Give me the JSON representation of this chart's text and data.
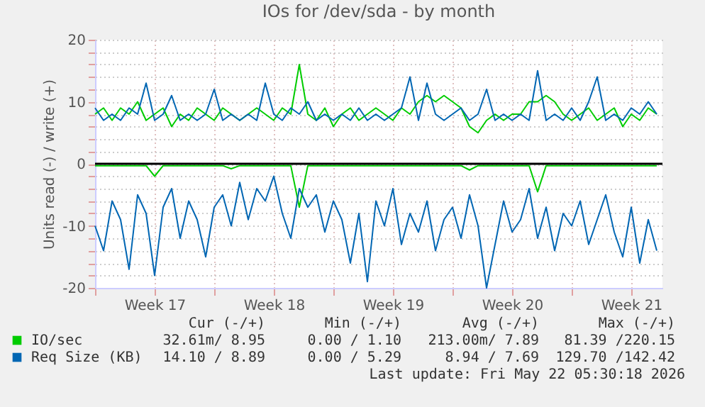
{
  "chart_data": {
    "type": "line",
    "title": "IOs for /dev/sda - by month",
    "ylabel": "Units read (-) / write (+)",
    "x": [
      "2026-04-20T00:00",
      "2026-04-20T12:00",
      "2026-04-21T00:00",
      "2026-04-21T12:00",
      "2026-04-22T00:00",
      "2026-04-22T12:00",
      "2026-04-23T00:00",
      "2026-04-23T12:00",
      "2026-04-24T00:00",
      "2026-04-24T12:00",
      "2026-04-25T00:00",
      "2026-04-25T12:00",
      "2026-04-26T00:00",
      "2026-04-26T12:00",
      "2026-04-27T00:00",
      "2026-04-27T12:00",
      "2026-04-28T00:00",
      "2026-04-28T12:00",
      "2026-04-29T00:00",
      "2026-04-29T12:00",
      "2026-04-30T00:00",
      "2026-04-30T12:00",
      "2026-05-01T00:00",
      "2026-05-01T12:00",
      "2026-05-02T00:00",
      "2026-05-02T12:00",
      "2026-05-03T00:00",
      "2026-05-03T12:00",
      "2026-05-04T00:00",
      "2026-05-04T12:00",
      "2026-05-05T00:00",
      "2026-05-05T12:00",
      "2026-05-06T00:00",
      "2026-05-06T12:00",
      "2026-05-07T00:00",
      "2026-05-07T12:00",
      "2026-05-08T00:00",
      "2026-05-08T12:00",
      "2026-05-09T00:00",
      "2026-05-09T12:00",
      "2026-05-10T00:00",
      "2026-05-10T12:00",
      "2026-05-11T00:00",
      "2026-05-11T12:00",
      "2026-05-12T00:00",
      "2026-05-12T12:00",
      "2026-05-13T00:00",
      "2026-05-13T12:00",
      "2026-05-14T00:00",
      "2026-05-14T12:00",
      "2026-05-15T00:00",
      "2026-05-15T12:00",
      "2026-05-16T00:00",
      "2026-05-16T12:00",
      "2026-05-17T00:00",
      "2026-05-17T12:00",
      "2026-05-18T00:00",
      "2026-05-18T12:00",
      "2026-05-19T00:00",
      "2026-05-19T12:00",
      "2026-05-20T00:00",
      "2026-05-20T12:00",
      "2026-05-21T00:00",
      "2026-05-21T12:00",
      "2026-05-22T00:00",
      "2026-05-22T12:00",
      "2026-05-23T00:00"
    ],
    "xlim": [
      "2026-04-20T00:00",
      "2026-05-23T08:00"
    ],
    "xticks": [
      {
        "value": "2026-04-20T00:00",
        "label": null
      },
      {
        "value": "2026-04-23T12:00",
        "label": "Week 17"
      },
      {
        "value": "2026-04-27T00:00",
        "label": null
      },
      {
        "value": "2026-04-30T12:00",
        "label": "Week 18"
      },
      {
        "value": "2026-05-04T00:00",
        "label": null
      },
      {
        "value": "2026-05-07T12:00",
        "label": "Week 19"
      },
      {
        "value": "2026-05-11T00:00",
        "label": null
      },
      {
        "value": "2026-05-14T12:00",
        "label": "Week 20"
      },
      {
        "value": "2026-05-18T00:00",
        "label": null
      },
      {
        "value": "2026-05-21T12:00",
        "label": "Week 21"
      }
    ],
    "ylim": [
      -20,
      20
    ],
    "yticks": [
      -20,
      {
        "value": -18,
        "label": null
      },
      {
        "value": -16,
        "label": null
      },
      {
        "value": -14,
        "label": null
      },
      {
        "value": -12,
        "label": null
      },
      -10,
      {
        "value": -8,
        "label": null
      },
      {
        "value": -6,
        "label": null
      },
      {
        "value": -4,
        "label": null
      },
      {
        "value": -2,
        "label": null
      },
      0,
      {
        "value": 2,
        "label": null
      },
      {
        "value": 4,
        "label": null
      },
      {
        "value": 6,
        "label": null
      },
      {
        "value": 8,
        "label": null
      },
      10,
      {
        "value": 12,
        "label": null
      },
      {
        "value": 14,
        "label": null
      },
      {
        "value": 16,
        "label": null
      },
      {
        "value": 18,
        "label": null
      },
      20
    ],
    "grid": true,
    "legend": "bottom",
    "line_style": "solid",
    "marker": "none",
    "ref_lines": [
      {
        "axis": "y",
        "value": 0,
        "color": "#000000"
      }
    ],
    "series": [
      {
        "color": "#00cc00",
        "values": [
          -0.3,
          -0.3,
          -0.3,
          -0.3,
          -0.3,
          -0.3,
          -0.3,
          -2,
          -0.3,
          -0.3,
          -0.3,
          -0.3,
          -0.3,
          -0.3,
          -0.3,
          -0.3,
          -0.8,
          -0.3,
          -0.3,
          -0.3,
          -0.3,
          -0.3,
          -0.3,
          -0.3,
          -7,
          -0.3,
          -0.3,
          -0.3,
          -0.3,
          -0.3,
          -0.3,
          -0.3,
          -0.3,
          -0.3,
          -0.3,
          -0.3,
          -0.3,
          -0.3,
          -0.3,
          -0.3,
          -0.3,
          -0.3,
          -0.3,
          -0.3,
          -1,
          -0.3,
          -0.3,
          -0.3,
          -0.3,
          -0.3,
          -0.3,
          -0.3,
          -4.5,
          -0.3,
          -0.3,
          -0.3,
          -0.3,
          -0.3,
          -0.3,
          -0.3,
          -0.3,
          -0.3,
          -0.3,
          -0.3,
          -0.3,
          -0.3,
          -0.3
        ]
      },
      {
        "name": "IO/sec",
        "color": "#00cc00",
        "values": [
          8,
          9,
          7,
          9,
          8,
          10,
          7,
          8,
          9,
          6,
          8,
          7,
          9,
          8,
          7,
          9,
          8,
          7,
          8,
          9,
          8,
          7,
          9,
          8,
          16,
          8,
          7,
          9,
          6,
          8,
          9,
          7,
          8,
          9,
          8,
          7,
          9,
          8,
          10,
          11,
          10,
          11,
          10,
          9,
          6,
          5,
          7,
          8,
          7,
          8,
          8,
          10,
          10,
          11,
          10,
          8,
          7,
          8,
          9,
          7,
          8,
          9,
          6,
          8,
          7,
          9,
          8
        ]
      },
      {
        "color": "#0066b3",
        "values": [
          -10,
          -14,
          -6,
          -9,
          -17,
          -5,
          -8,
          -18,
          -7,
          -4,
          -12,
          -6,
          -9,
          -15,
          -7,
          -5,
          -10,
          -3,
          -9,
          -4,
          -6,
          -2,
          -8,
          -12,
          -4,
          -7,
          -5,
          -11,
          -6,
          -9,
          -16,
          -8,
          -19,
          -6,
          -10,
          -4,
          -13,
          -8,
          -11,
          -6,
          -14,
          -9,
          -7,
          -12,
          -5,
          -10,
          -20,
          -13,
          -6,
          -11,
          -9,
          -4,
          -12,
          -7,
          -14,
          -8,
          -10,
          -6,
          -13,
          -9,
          -5,
          -11,
          -15,
          -7,
          -16,
          -9,
          -14
        ]
      },
      {
        "name": "Req Size (KB)",
        "color": "#0066b3",
        "values": [
          9,
          7,
          8,
          7,
          9,
          8,
          13,
          7,
          8,
          11,
          7,
          8,
          7,
          8,
          12,
          7,
          8,
          7,
          8,
          7,
          13,
          8,
          7,
          9,
          8,
          10,
          7,
          8,
          7,
          8,
          7,
          9,
          7,
          8,
          7,
          8,
          9,
          14,
          7,
          13,
          8,
          7,
          8,
          9,
          7,
          8,
          12,
          7,
          8,
          7,
          8,
          7,
          15,
          7,
          8,
          7,
          9,
          7,
          10,
          14,
          7,
          8,
          7,
          9,
          8,
          10,
          8
        ]
      }
    ],
    "annotations": [
      "Cur (-/+)",
      "Min (-/+)",
      "Avg (-/+)",
      "Max (-/+)",
      "32.61m/ 8.95",
      "0.00 / 1.10",
      "213.00m/ 7.89",
      "81.39 /220.15",
      "14.10 / 8.89",
      "0.00 / 5.29",
      "8.94 / 7.69",
      "129.70 /142.42",
      "Last update: Fri May 22 05:30:18 2026"
    ]
  }
}
